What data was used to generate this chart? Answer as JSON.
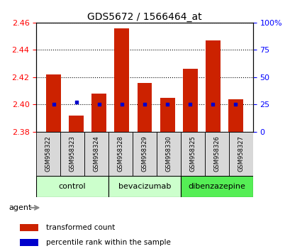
{
  "title": "GDS5672 / 1566464_at",
  "samples": [
    "GSM958322",
    "GSM958323",
    "GSM958324",
    "GSM958328",
    "GSM958329",
    "GSM958330",
    "GSM958325",
    "GSM958326",
    "GSM958327"
  ],
  "transformed_counts": [
    2.422,
    2.392,
    2.408,
    2.456,
    2.416,
    2.405,
    2.426,
    2.447,
    2.404
  ],
  "percentile_ranks": [
    25,
    27,
    25,
    25,
    25,
    25,
    25,
    25,
    25
  ],
  "bar_bottom": 2.38,
  "ylim_left": [
    2.38,
    2.46
  ],
  "ylim_right": [
    0,
    100
  ],
  "yticks_left": [
    2.38,
    2.4,
    2.42,
    2.44,
    2.46
  ],
  "yticks_right": [
    0,
    25,
    50,
    75,
    100
  ],
  "ytick_labels_right": [
    "0",
    "25",
    "50",
    "75",
    "100%"
  ],
  "group_defs": [
    {
      "name": "control",
      "start": 0,
      "end": 2,
      "color": "#ccffcc"
    },
    {
      "name": "bevacizumab",
      "start": 3,
      "end": 5,
      "color": "#ccffcc"
    },
    {
      "name": "dibenzazepine",
      "start": 6,
      "end": 8,
      "color": "#55ee55"
    }
  ],
  "bar_color": "#cc2200",
  "percentile_color": "#0000cc",
  "bar_width": 0.65,
  "background_color": "#ffffff",
  "plot_bg_color": "#ffffff",
  "legend_items": [
    {
      "label": "transformed count",
      "color": "#cc2200"
    },
    {
      "label": "percentile rank within the sample",
      "color": "#0000cc"
    }
  ],
  "xlabel": "agent"
}
